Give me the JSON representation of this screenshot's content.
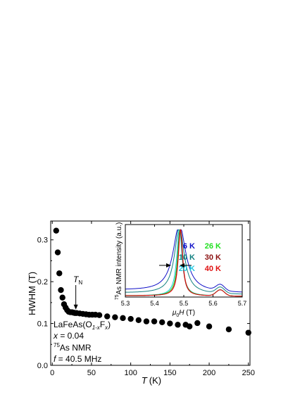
{
  "chart_data": [
    {
      "type": "scatter",
      "title": "",
      "xlabel": "T",
      "xlabel_unit": "(K)",
      "ylabel": "HWHM (T)",
      "xlim": [
        -2,
        252
      ],
      "ylim": [
        0.0,
        0.345
      ],
      "xticks": [
        0,
        50,
        100,
        150,
        200,
        250
      ],
      "yticks": [
        0.0,
        0.1,
        0.2,
        0.3
      ],
      "ytick_labels": [
        "0.0",
        "0.1",
        "0.2",
        "0.3"
      ],
      "grid": false,
      "marker_color": "#000000",
      "series": [
        {
          "x": [
            5,
            7,
            9,
            11,
            13,
            15,
            17,
            19,
            21,
            23,
            25,
            27,
            29,
            31,
            35,
            39,
            43,
            47,
            51,
            55,
            60,
            70,
            80,
            90,
            100,
            110,
            120,
            130,
            140,
            150,
            160,
            170,
            175,
            185,
            200,
            225,
            250
          ],
          "y": [
            0.322,
            0.27,
            0.22,
            0.18,
            0.162,
            0.146,
            0.138,
            0.132,
            0.128,
            0.127,
            0.127,
            0.126,
            0.125,
            0.125,
            0.124,
            0.123,
            0.122,
            0.121,
            0.121,
            0.121,
            0.12,
            0.117,
            0.115,
            0.113,
            0.111,
            0.108,
            0.105,
            0.105,
            0.103,
            0.1,
            0.097,
            0.097,
            0.093,
            0.101,
            0.093,
            0.086,
            0.078
          ]
        }
      ],
      "annotations": {
        "tn_label": "T",
        "tn_sub": "N",
        "tn_x": 30,
        "tn_y": 0.13,
        "compound_main": "LaFeAs(O",
        "compound_sub1": "1-x",
        "compound_f": "F",
        "compound_sub2": "x",
        "compound_close": ")",
        "x_var": "x",
        "x_value": " = 0.04",
        "nmr_sup": "75",
        "nmr_text": "As NMR",
        "freq_var": "f",
        "freq_value": " = 40.5 MHz"
      }
    },
    {
      "type": "line",
      "title": "",
      "xlabel_prefix": "μ",
      "xlabel_sub": "0",
      "xlabel_var": "H",
      "xlabel_unit": " (T)",
      "ylabel_sup": "75",
      "ylabel_text": "As NMR intensity (a.u.)",
      "xlim": [
        5.3,
        5.7
      ],
      "ylim": [
        0.0,
        1.08
      ],
      "xticks": [
        5.3,
        5.4,
        5.5,
        5.6,
        5.7
      ],
      "xtick_labels": [
        "5.3",
        "5.4",
        "5.5",
        "5.6",
        "5.7"
      ],
      "grid": false,
      "legend_position": "top-right",
      "series": [
        {
          "name": "6 K",
          "color": "#1010c8",
          "center": 5.485,
          "width": 0.026,
          "tail": 0.1,
          "x": [
            5.3,
            5.35,
            5.4,
            5.44,
            5.47,
            5.485,
            5.5,
            5.53,
            5.58,
            5.625,
            5.66,
            5.7
          ],
          "y": [
            0.12,
            0.19,
            0.28,
            0.4,
            0.72,
            1.0,
            0.72,
            0.38,
            0.2,
            0.23,
            0.12,
            0.07
          ]
        },
        {
          "name": "10 K",
          "color": "#108080",
          "center": 5.485,
          "width": 0.02,
          "tail": 0.06,
          "x": [
            5.3,
            5.35,
            5.4,
            5.44,
            5.47,
            5.485,
            5.5,
            5.53,
            5.58,
            5.625,
            5.66,
            5.7
          ],
          "y": [
            0.07,
            0.13,
            0.2,
            0.33,
            0.68,
            1.0,
            0.66,
            0.3,
            0.14,
            0.19,
            0.09,
            0.05
          ]
        },
        {
          "name": "20 K",
          "color": "#20c8e0",
          "center": 5.485,
          "width": 0.011,
          "tail": 0.02,
          "x": [
            5.3,
            5.35,
            5.4,
            5.44,
            5.47,
            5.485,
            5.5,
            5.53,
            5.58,
            5.625,
            5.66,
            5.7
          ],
          "y": [
            0.03,
            0.04,
            0.06,
            0.12,
            0.55,
            1.0,
            0.52,
            0.12,
            0.06,
            0.13,
            0.04,
            0.02
          ]
        },
        {
          "name": "26 K",
          "color": "#20e020",
          "center": 5.487,
          "width": 0.01,
          "tail": 0.02,
          "x": [
            5.3,
            5.35,
            5.4,
            5.44,
            5.47,
            5.487,
            5.5,
            5.53,
            5.58,
            5.625,
            5.66,
            5.7
          ],
          "y": [
            0.03,
            0.04,
            0.06,
            0.11,
            0.5,
            1.0,
            0.55,
            0.12,
            0.06,
            0.12,
            0.04,
            0.02
          ]
        },
        {
          "name": "30 K",
          "color": "#8b1010",
          "center": 5.488,
          "width": 0.009,
          "tail": 0.02,
          "x": [
            5.3,
            5.35,
            5.4,
            5.44,
            5.47,
            5.488,
            5.5,
            5.53,
            5.58,
            5.625,
            5.66,
            5.7
          ],
          "y": [
            0.02,
            0.03,
            0.05,
            0.1,
            0.45,
            1.0,
            0.6,
            0.1,
            0.05,
            0.11,
            0.03,
            0.02
          ]
        },
        {
          "name": "40 K",
          "color": "#e01010",
          "center": 5.489,
          "width": 0.009,
          "tail": 0.02,
          "x": [
            5.3,
            5.35,
            5.4,
            5.44,
            5.47,
            5.489,
            5.5,
            5.53,
            5.58,
            5.625,
            5.66,
            5.7
          ],
          "y": [
            0.02,
            0.03,
            0.05,
            0.09,
            0.42,
            1.0,
            0.62,
            0.1,
            0.05,
            0.11,
            0.03,
            0.02
          ]
        }
      ]
    }
  ]
}
